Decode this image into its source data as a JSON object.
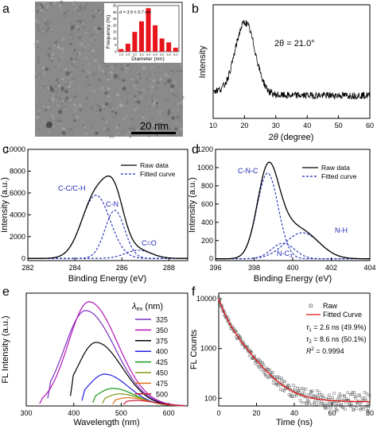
{
  "panels": {
    "a": {
      "letter": "a",
      "scale_bar_label": "20 nm",
      "inset": {
        "ylabel": "Frequency (%)",
        "xlabel": "Diameter (nm)",
        "note": "d = 3.9 ± 0.7 nm",
        "yticks": [
          "0",
          "5",
          "10",
          "15",
          "20",
          "25",
          "30",
          "35"
        ],
        "xticks": [
          "2.0",
          "2.5",
          "3.0",
          "3.5",
          "4.0",
          "4.5",
          "5.0",
          "5.5",
          "6.0"
        ]
      }
    },
    "b": {
      "letter": "b",
      "annotation": "2θ = 21.0°"
    },
    "c": {
      "letter": "c"
    },
    "d": {
      "letter": "d"
    },
    "e": {
      "letter": "e",
      "legend_title": "λex (nm)"
    },
    "f": {
      "letter": "f",
      "annotations": [
        "τ1 = 2.6 ns (49.9%)",
        "τ2 = 8.6 ns (50.1%)",
        "R² = 0.9994"
      ]
    }
  },
  "chart_data": [
    {
      "id": "a-inset",
      "type": "bar",
      "xlabel": "Diameter (nm)",
      "ylabel": "Frequency (%)",
      "categories": [
        2.0,
        2.5,
        3.0,
        3.5,
        4.0,
        4.5,
        5.0,
        5.5,
        6.0
      ],
      "values": [
        2,
        6,
        15,
        23,
        33,
        20,
        10,
        7,
        3
      ],
      "ylim": [
        0,
        35
      ],
      "color": "#e8141c"
    },
    {
      "id": "b",
      "type": "line",
      "xlabel": "2θ (degree)",
      "ylabel": "Intensity",
      "xlim": [
        10,
        60
      ],
      "xticks": [
        10,
        20,
        30,
        40,
        50,
        60
      ],
      "yticks": [],
      "peak": {
        "center": 21.0,
        "width": 3.2
      },
      "color": "#000000"
    },
    {
      "id": "c",
      "type": "line",
      "xlabel": "Binding Energy (eV)",
      "ylabel": "Intensity (a.u.)",
      "xlim": [
        282,
        288.8
      ],
      "ylim": [
        -200,
        10000
      ],
      "xticks": [
        282,
        284,
        286,
        288
      ],
      "yticks": [
        0,
        2000,
        4000,
        6000,
        8000,
        10000
      ],
      "components": [
        {
          "name": "C-C/C-H",
          "center": 284.9,
          "height": 5800,
          "sigma": 0.6
        },
        {
          "name": "C-N",
          "center": 285.7,
          "height": 4400,
          "sigma": 0.42
        },
        {
          "name": "C=O",
          "center": 286.7,
          "height": 750,
          "sigma": 0.55
        }
      ],
      "series": [
        {
          "name": "Raw data",
          "style": "solid",
          "color": "#000000"
        },
        {
          "name": "Fitted curve",
          "style": "dashed",
          "color": "#1f2bb5"
        }
      ]
    },
    {
      "id": "d",
      "type": "line",
      "xlabel": "Binding Energy (eV)",
      "ylabel": "Intensity (a.u.)",
      "xlim": [
        396,
        404
      ],
      "ylim": [
        -20,
        1200
      ],
      "xticks": [
        396,
        398,
        400,
        402,
        404
      ],
      "yticks": [
        0,
        200,
        400,
        600,
        800,
        1000,
        1200
      ],
      "components": [
        {
          "name": "C-N-C",
          "center": 398.7,
          "height": 940,
          "sigma": 0.55
        },
        {
          "name": "N-C3",
          "center": 399.5,
          "height": 170,
          "sigma": 0.6
        },
        {
          "name": "N-H",
          "center": 400.5,
          "height": 285,
          "sigma": 0.9
        }
      ],
      "series": [
        {
          "name": "Raw data",
          "style": "solid",
          "color": "#000000"
        },
        {
          "name": "Fitted curve",
          "style": "dashed",
          "color": "#1f2bb5"
        }
      ]
    },
    {
      "id": "e",
      "type": "line",
      "xlabel": "Wavelength (nm)",
      "ylabel": "FL Intensity (a.u.)",
      "xlim": [
        300,
        640
      ],
      "xticks": [
        300,
        400,
        500,
        600
      ],
      "yticks": [],
      "legend_title": "λex (nm)",
      "series": [
        {
          "name": "325",
          "color": "#7b2fbe",
          "start": 345,
          "peak": 425,
          "peak_value": 0.87,
          "width": 62
        },
        {
          "name": "350",
          "color": "#b414b4",
          "start": 328,
          "peak": 432,
          "peak_value": 0.95,
          "width": 60
        },
        {
          "name": "375",
          "color": "#000000",
          "start": 393,
          "peak": 447,
          "peak_value": 0.58,
          "width": 55
        },
        {
          "name": "400",
          "color": "#2020e0",
          "start": 417,
          "peak": 465,
          "peak_value": 0.29,
          "width": 50
        },
        {
          "name": "425",
          "color": "#1a9a1a",
          "start": 440,
          "peak": 482,
          "peak_value": 0.16,
          "width": 48
        },
        {
          "name": "450",
          "color": "#7a9a10",
          "start": 460,
          "peak": 497,
          "peak_value": 0.11,
          "width": 46
        },
        {
          "name": "475",
          "color": "#e07010",
          "start": 482,
          "peak": 513,
          "peak_value": 0.075,
          "width": 44
        },
        {
          "name": "500",
          "color": "#c81e3a",
          "start": 505,
          "peak": 530,
          "peak_value": 0.05,
          "width": 42
        }
      ]
    },
    {
      "id": "f",
      "type": "scatter",
      "xlabel": "Time (ns)",
      "ylabel": "FL Counts",
      "xlim": [
        0,
        80
      ],
      "ylim": [
        70,
        13000
      ],
      "yscale": "log",
      "xticks": [
        0,
        20,
        40,
        60,
        80
      ],
      "yticks": [
        100,
        1000,
        10000
      ],
      "fit": {
        "A0": 10000,
        "tau1": 2.6,
        "frac1": 0.499,
        "tau2": 8.6,
        "frac2": 0.501,
        "baseline": 85
      },
      "series": [
        {
          "name": "Raw",
          "marker": "open-square",
          "color": "#555555"
        },
        {
          "name": "Fitted Curve",
          "style": "solid",
          "color": "#e01010"
        }
      ]
    }
  ]
}
